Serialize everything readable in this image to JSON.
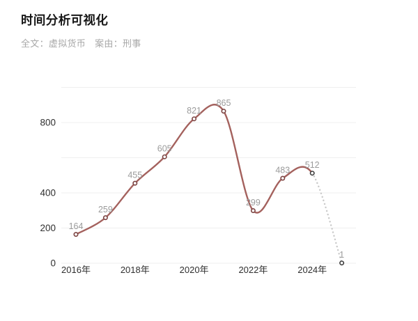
{
  "header": {
    "title": "时间分析可视化",
    "filters": {
      "fulltext": "全文：虚拟货币",
      "cause": "案由：刑事"
    }
  },
  "chart_data": {
    "type": "line",
    "title": "时间分析可视化",
    "x": [
      2016,
      2017,
      2018,
      2019,
      2020,
      2021,
      2022,
      2023,
      2024,
      2025
    ],
    "values": [
      164,
      259,
      455,
      605,
      821,
      865,
      299,
      483,
      512,
      1
    ],
    "point_labels": [
      "164",
      "259",
      "455",
      "605",
      "821",
      "865",
      "299",
      "483",
      "512",
      "1"
    ],
    "solid_points": 9,
    "forecast_segment": {
      "from_x": 2024,
      "to_x": 2025,
      "style": "dotted"
    },
    "x_tick_labels": [
      {
        "year": 2016,
        "label": "2016年"
      },
      {
        "year": 2018,
        "label": "2018年"
      },
      {
        "year": 2020,
        "label": "2020年"
      },
      {
        "year": 2022,
        "label": "2022年"
      },
      {
        "year": 2024,
        "label": "2024年"
      }
    ],
    "ylim": [
      0,
      1000
    ],
    "y_gridlines": [
      0,
      200,
      400,
      600,
      800,
      1000
    ],
    "y_ticks": [
      {
        "value": 0,
        "label": "0"
      },
      {
        "value": 200,
        "label": "200"
      },
      {
        "value": 400,
        "label": "400"
      },
      {
        "value": 800,
        "label": "800"
      }
    ],
    "grid": true,
    "legend": "none",
    "style": {
      "line_color": "#a4615d",
      "marker_ring_color": "#7c4442",
      "endpoint_ring_color": "#3c3c3c",
      "marker_fill": "#ffffff",
      "forecast_dot_color": "#c9c9c9",
      "point_label_color": "#9b9b9b",
      "axis_label_color": "#2f2f2f",
      "grid_color": "#efefef"
    }
  }
}
